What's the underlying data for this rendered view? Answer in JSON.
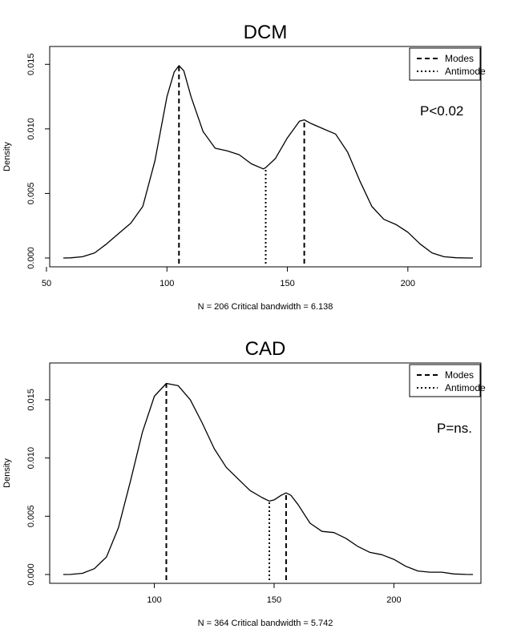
{
  "chart_data": [
    {
      "type": "line",
      "title": "DCM",
      "xlabel": "N =  206  Critical bandwidth =  6.138",
      "ylabel": "Density",
      "annotation": "P<0.02",
      "xlim": [
        50,
        230
      ],
      "ylim": [
        0,
        0.0157
      ],
      "xticks": [
        50,
        100,
        150,
        200
      ],
      "yticks": [
        "0.000",
        "0.005",
        "0.010",
        "0.015"
      ],
      "legend": {
        "position": "top-right",
        "entries": [
          {
            "label": "Modes",
            "style": "dashed"
          },
          {
            "label": "Antimode",
            "style": "dotted"
          }
        ]
      },
      "series": [
        {
          "x": [
            57,
            60,
            65,
            70,
            75,
            80,
            85,
            90,
            95,
            100,
            103,
            105,
            107,
            110,
            115,
            120,
            125,
            130,
            135,
            140,
            141,
            145,
            150,
            155,
            157,
            160,
            165,
            170,
            175,
            180,
            185,
            190,
            195,
            200,
            205,
            210,
            215,
            220,
            225,
            227
          ],
          "y": [
            0,
            1e-05,
            0.0001,
            0.0004,
            0.0011,
            0.0019,
            0.0027,
            0.004,
            0.0075,
            0.0125,
            0.0144,
            0.0149,
            0.0145,
            0.0125,
            0.0098,
            0.0085,
            0.0083,
            0.008,
            0.0073,
            0.0069,
            0.007,
            0.0077,
            0.0093,
            0.0106,
            0.0107,
            0.0104,
            0.01,
            0.0096,
            0.0082,
            0.006,
            0.004,
            0.003,
            0.0026,
            0.002,
            0.0011,
            0.0004,
            0.0001,
            2e-05,
            0,
            0
          ]
        }
      ],
      "modes": [
        105,
        157
      ],
      "antimodes": [
        141
      ]
    },
    {
      "type": "line",
      "title": "CAD",
      "xlabel": "N =  364  Critical bandwidth =  5.742",
      "ylabel": "Density",
      "annotation": "P=ns.",
      "xlim": [
        60,
        235
      ],
      "ylim": [
        0,
        0.0174
      ],
      "xticks": [
        100,
        150,
        200
      ],
      "yticks": [
        "0.000",
        "0.005",
        "0.010",
        "0.015"
      ],
      "legend": {
        "position": "top-right",
        "entries": [
          {
            "label": "Modes",
            "style": "dashed"
          },
          {
            "label": "Antimode",
            "style": "dotted"
          }
        ]
      },
      "series": [
        {
          "x": [
            62,
            65,
            70,
            75,
            80,
            85,
            90,
            95,
            100,
            105,
            110,
            115,
            120,
            125,
            130,
            135,
            140,
            145,
            148,
            150,
            153,
            155,
            157,
            160,
            165,
            170,
            175,
            180,
            185,
            190,
            195,
            200,
            205,
            210,
            215,
            220,
            225,
            230,
            233
          ],
          "y": [
            0,
            1e-05,
            0.0001,
            0.0005,
            0.0015,
            0.004,
            0.008,
            0.0122,
            0.0153,
            0.0164,
            0.0162,
            0.015,
            0.013,
            0.0108,
            0.0092,
            0.0082,
            0.0072,
            0.0066,
            0.0063,
            0.0064,
            0.0068,
            0.007,
            0.0068,
            0.006,
            0.0044,
            0.0037,
            0.0036,
            0.0031,
            0.0024,
            0.0019,
            0.0017,
            0.0013,
            0.0007,
            0.0003,
            0.0002,
            0.0002,
            5e-05,
            1e-05,
            0
          ]
        }
      ],
      "modes": [
        105,
        155
      ],
      "antimodes": [
        148
      ]
    }
  ]
}
